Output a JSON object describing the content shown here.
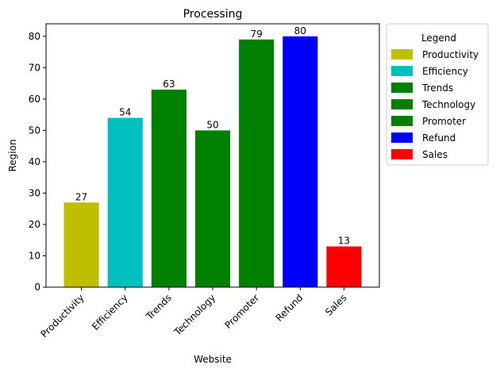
{
  "chart_data": {
    "type": "bar",
    "title": "Processing",
    "xlabel": "Website",
    "ylabel": "Region",
    "categories": [
      "Productivity",
      "Efficiency",
      "Trends",
      "Technology",
      "Promoter",
      "Refund",
      "Sales"
    ],
    "values": [
      27,
      54,
      63,
      50,
      79,
      80,
      13
    ],
    "colors": [
      "#bfbf00",
      "#00bfbf",
      "#008000",
      "#008000",
      "#008000",
      "#0000ff",
      "#ff0000"
    ],
    "ylim": [
      0,
      84
    ],
    "yticks": [
      0,
      10,
      20,
      30,
      40,
      50,
      60,
      70,
      80
    ],
    "grid": false,
    "legend": {
      "title": "Legend",
      "placement": "outside-right-top",
      "entries": [
        {
          "label": "Productivity",
          "color": "#bfbf00"
        },
        {
          "label": "Efficiency",
          "color": "#00bfbf"
        },
        {
          "label": "Trends",
          "color": "#008000"
        },
        {
          "label": "Technology",
          "color": "#008000"
        },
        {
          "label": "Promoter",
          "color": "#008000"
        },
        {
          "label": "Refund",
          "color": "#0000ff"
        },
        {
          "label": "Sales",
          "color": "#ff0000"
        }
      ]
    }
  }
}
